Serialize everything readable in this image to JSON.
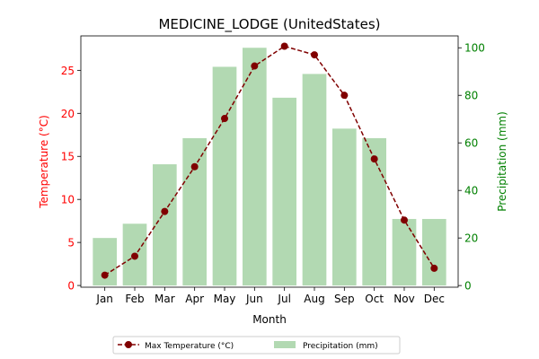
{
  "chart_data": {
    "type": "bar+line",
    "title": "MEDICINE_LODGE (UnitedStates)",
    "xlabel": "Month",
    "ylabel_left": "Temperature (°C)",
    "ylabel_right": "Precipitation (mm)",
    "categories": [
      "Jan",
      "Feb",
      "Mar",
      "Apr",
      "May",
      "Jun",
      "Jul",
      "Aug",
      "Sep",
      "Oct",
      "Nov",
      "Dec"
    ],
    "ylim_left": [
      -0.2,
      29
    ],
    "ylim_right": [
      -0.7,
      105
    ],
    "yticks_left": [
      0,
      5,
      10,
      15,
      20,
      25
    ],
    "yticks_right": [
      0,
      20,
      40,
      60,
      80,
      100
    ],
    "grid": false,
    "legend_position": "bottom-center",
    "series": [
      {
        "name": "Max Temperature (°C)",
        "type": "line",
        "axis": "left",
        "color": "#800000",
        "line_style": "dashed",
        "marker": "circle",
        "values": [
          1.2,
          3.4,
          8.6,
          13.8,
          19.4,
          25.5,
          27.8,
          26.8,
          22.1,
          14.7,
          7.6,
          2.0
        ]
      },
      {
        "name": "Precipitation (mm)",
        "type": "bar",
        "axis": "right",
        "color": "#b2d9b2",
        "values": [
          20,
          26,
          51,
          62,
          92,
          100,
          79,
          89,
          66,
          62,
          28,
          28
        ]
      }
    ],
    "colors": {
      "left_axis": "#ff0000",
      "right_axis": "#008000"
    }
  }
}
